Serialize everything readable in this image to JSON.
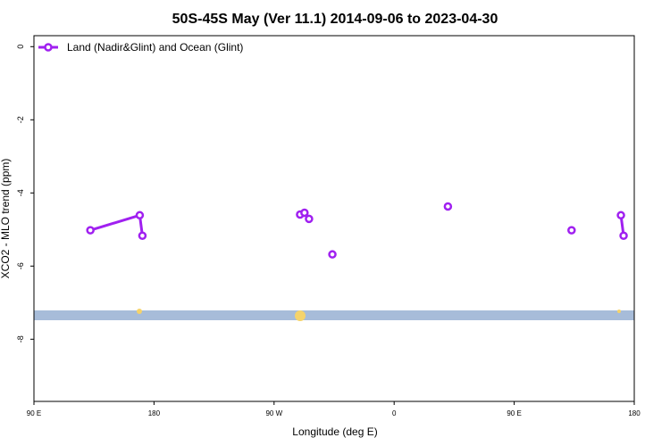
{
  "chart_data": {
    "type": "line",
    "title": "50S-45S May (Ver 11.1)   2014-09-06 to 2023-04-30",
    "x_label": "Longitude (deg E)",
    "y_label": "XCO2 - MLO trend (ppm)",
    "legend": "top-left",
    "x": [
      132.3,
      169.3,
      171.3,
      230,
      289.5,
      230,
      292.8,
      230,
      296.2,
      230,
      313.7,
      230,
      400.3,
      230,
      493,
      230,
      530,
      532
    ],
    "series": [
      {
        "name": "Land (Nadir&Glint) and Ocean (Glint)",
        "color": "#a020f0",
        "values": [
          -5.02,
          -4.61,
          -5.17,
          null,
          -4.59,
          null,
          -4.54,
          null,
          -4.71,
          null,
          -5.68,
          null,
          -4.37,
          null,
          -5.02,
          null,
          -4.61,
          -5.17
        ]
      }
    ],
    "xlim": [
      90,
      540
    ],
    "xticks": [
      {
        "value": 90,
        "label": "90 E"
      },
      {
        "value": 180,
        "label": "180"
      },
      {
        "value": 270,
        "label": "90 W"
      },
      {
        "value": 360,
        "label": "0"
      },
      {
        "value": 450,
        "label": "90 E"
      },
      {
        "value": 540,
        "label": "180"
      }
    ],
    "ylim": [
      -9.7,
      0.3
    ],
    "yticks": [
      0,
      -2,
      -4,
      -6,
      -8
    ]
  }
}
